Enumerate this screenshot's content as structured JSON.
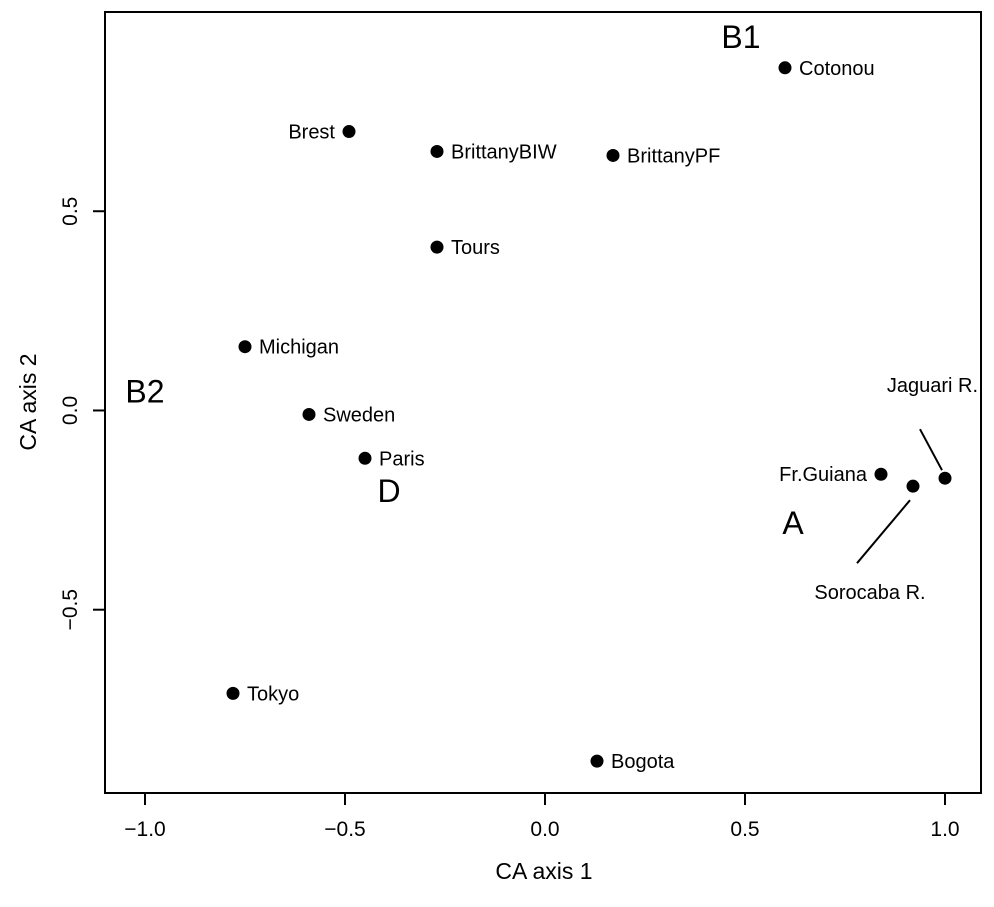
{
  "chart_data": {
    "type": "scatter",
    "xlabel": "CA axis 1",
    "ylabel": "CA axis 2",
    "xlim": [
      -1.1,
      1.09
    ],
    "ylim": [
      -0.96,
      1.0
    ],
    "xticks": [
      -1.0,
      -0.5,
      0.0,
      0.5,
      1.0
    ],
    "xtick_labels": [
      "−1.0",
      "−0.5",
      "0.0",
      "0.5",
      "1.0"
    ],
    "yticks": [
      -0.5,
      0.0,
      0.5
    ],
    "ytick_labels": [
      "−0.5",
      "0.0",
      "0.5"
    ],
    "grid": false,
    "legend": "none",
    "points": [
      {
        "name": "Cotonou",
        "x": 0.6,
        "y": 0.86,
        "label_side": "right"
      },
      {
        "name": "Brest",
        "x": -0.49,
        "y": 0.7,
        "label_side": "left"
      },
      {
        "name": "BrittanyBIW",
        "x": -0.27,
        "y": 0.65,
        "label_side": "right"
      },
      {
        "name": "BrittanyPF",
        "x": 0.17,
        "y": 0.64,
        "label_side": "right"
      },
      {
        "name": "Tours",
        "x": -0.27,
        "y": 0.41,
        "label_side": "right"
      },
      {
        "name": "Michigan",
        "x": -0.75,
        "y": 0.16,
        "label_side": "right"
      },
      {
        "name": "Sweden",
        "x": -0.59,
        "y": -0.01,
        "label_side": "right"
      },
      {
        "name": "Paris",
        "x": -0.45,
        "y": -0.12,
        "label_side": "right"
      },
      {
        "name": "Fr.Guiana",
        "x": 0.84,
        "y": -0.16,
        "label_side": "left"
      },
      {
        "name": "Sorocaba R.",
        "x": 0.92,
        "y": -0.19,
        "label_side": "callout-below"
      },
      {
        "name": "Jaguari R.",
        "x": 1.0,
        "y": -0.17,
        "label_side": "callout-above"
      },
      {
        "name": "Tokyo",
        "x": -0.78,
        "y": -0.71,
        "label_side": "right"
      },
      {
        "name": "Bogota",
        "x": 0.13,
        "y": -0.88,
        "label_side": "right"
      }
    ],
    "groups": [
      {
        "name": "B1",
        "x": 0.49,
        "y": 0.91
      },
      {
        "name": "B2",
        "x": -1.0,
        "y": 0.02
      },
      {
        "name": "D",
        "x": -0.39,
        "y": -0.23
      },
      {
        "name": "A",
        "x": 0.62,
        "y": -0.31
      }
    ]
  }
}
